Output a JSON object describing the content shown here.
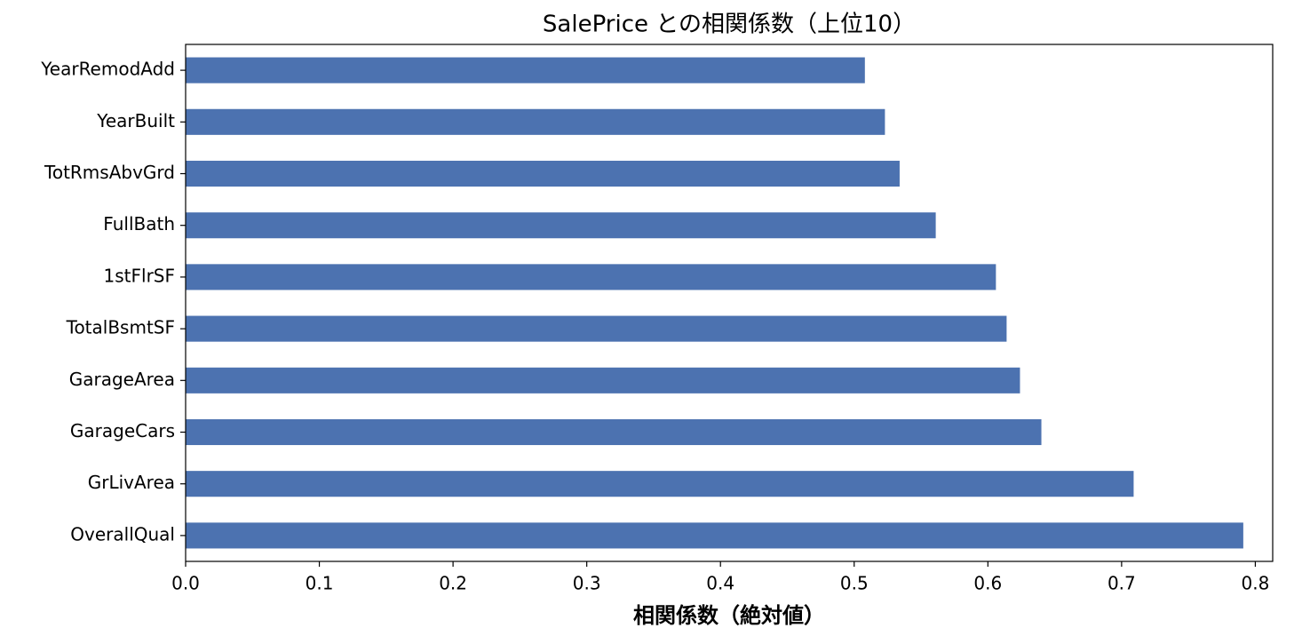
{
  "chart_data": {
    "type": "barh",
    "title": "SalePrice との相関係数（上位10）",
    "xlabel": "相関係数（絶対値）",
    "categories": [
      "YearRemodAdd",
      "YearBuilt",
      "TotRmsAbvGrd",
      "FullBath",
      "1stFlrSF",
      "TotalBsmtSF",
      "GarageArea",
      "GarageCars",
      "GrLivArea",
      "OverallQual"
    ],
    "values": [
      0.508,
      0.523,
      0.534,
      0.561,
      0.606,
      0.614,
      0.624,
      0.64,
      0.709,
      0.791
    ],
    "color": "#4c72b0",
    "xlim": [
      0,
      0.813
    ],
    "xticks": [
      {
        "value": 0,
        "label": "0.0"
      },
      0.1,
      0.2,
      0.3,
      0.4,
      0.5,
      0.6,
      0.7,
      0.8
    ],
    "grid": false
  }
}
